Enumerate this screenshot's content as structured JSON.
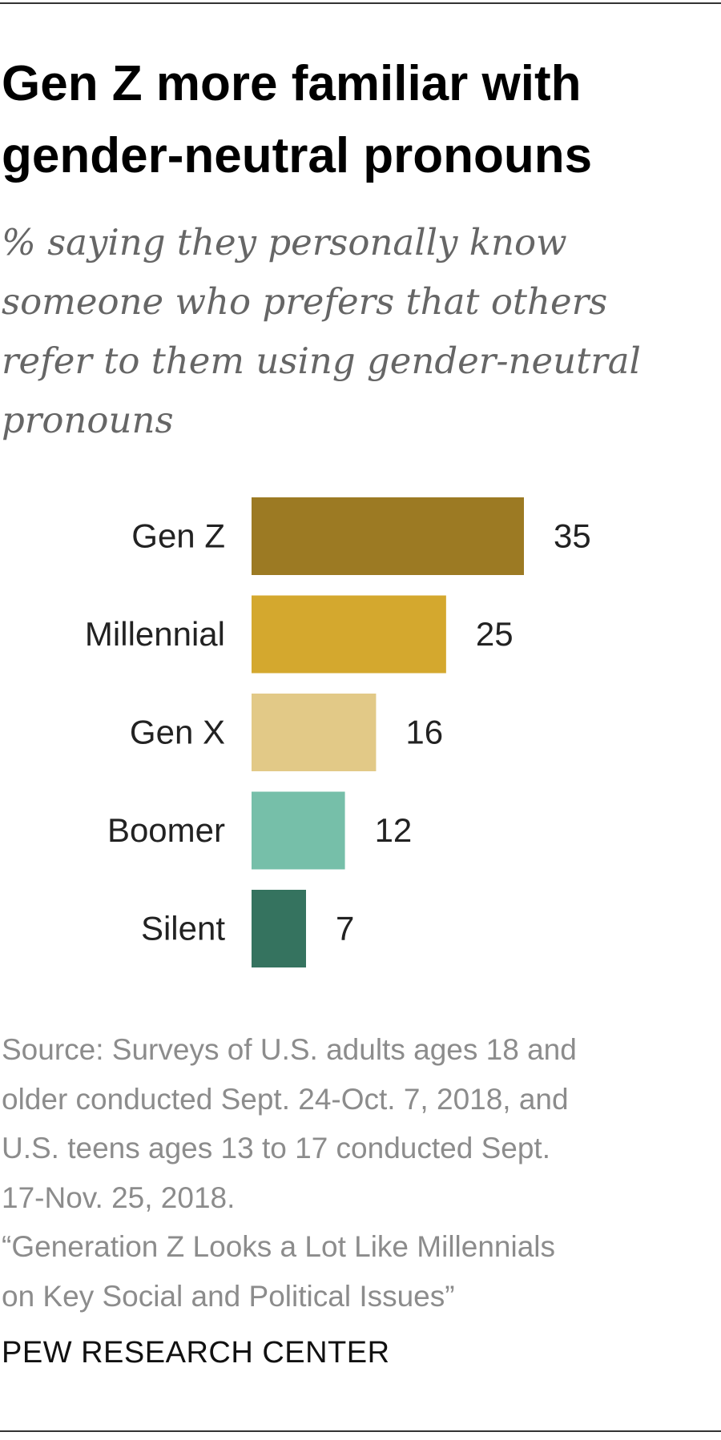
{
  "header": {
    "title_line1": "Gen Z more familiar with",
    "title_line2": "gender-neutral pronouns",
    "subtitle_line1": "% saying they personally know",
    "subtitle_line2": "someone who prefers that others",
    "subtitle_line3": "refer to them using gender-neutral",
    "subtitle_line4": "pronouns"
  },
  "chart_data": {
    "type": "bar",
    "orientation": "horizontal",
    "title": "Gen Z more familiar with gender-neutral pronouns",
    "subtitle": "% saying they personally know someone who prefers that others refer to them using gender-neutral pronouns",
    "categories": [
      "Gen Z",
      "Millennial",
      "Gen X",
      "Boomer",
      "Silent"
    ],
    "values": [
      35,
      25,
      16,
      12,
      7
    ],
    "colors": [
      "#9c7a23",
      "#d4a82e",
      "#e2c987",
      "#76bfa9",
      "#35735f"
    ],
    "xlabel": "",
    "ylabel": "",
    "xlim": [
      0,
      35
    ],
    "grid": false,
    "legend": "none",
    "data_labels": true
  },
  "footer": {
    "source_line1": "Source: Surveys of U.S. adults ages 18 and",
    "source_line2": "older conducted Sept. 24-Oct. 7, 2018, and",
    "source_line3": "U.S. teens ages 13 to 17 conducted Sept.",
    "source_line4": "17-Nov. 25, 2018.",
    "report_line1": "“Generation Z Looks a Lot Like Millennials",
    "report_line2": "on Key Social and Political Issues”",
    "brand": "PEW RESEARCH CENTER"
  }
}
